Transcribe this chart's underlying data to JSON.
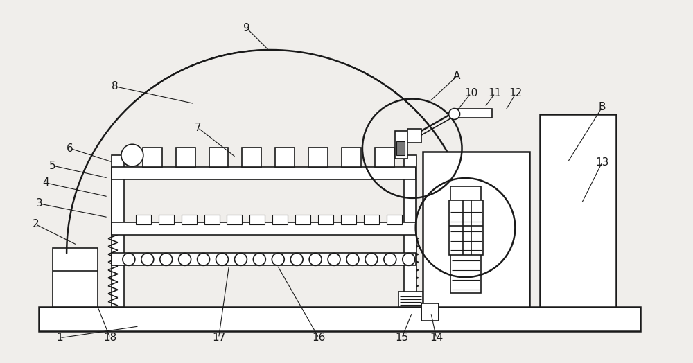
{
  "fig_width": 10.0,
  "fig_height": 5.24,
  "bg_color": "#f0eeeb",
  "line_color": "#1a1a1a",
  "lw_thin": 0.8,
  "lw_med": 1.2,
  "lw_thick": 1.8
}
